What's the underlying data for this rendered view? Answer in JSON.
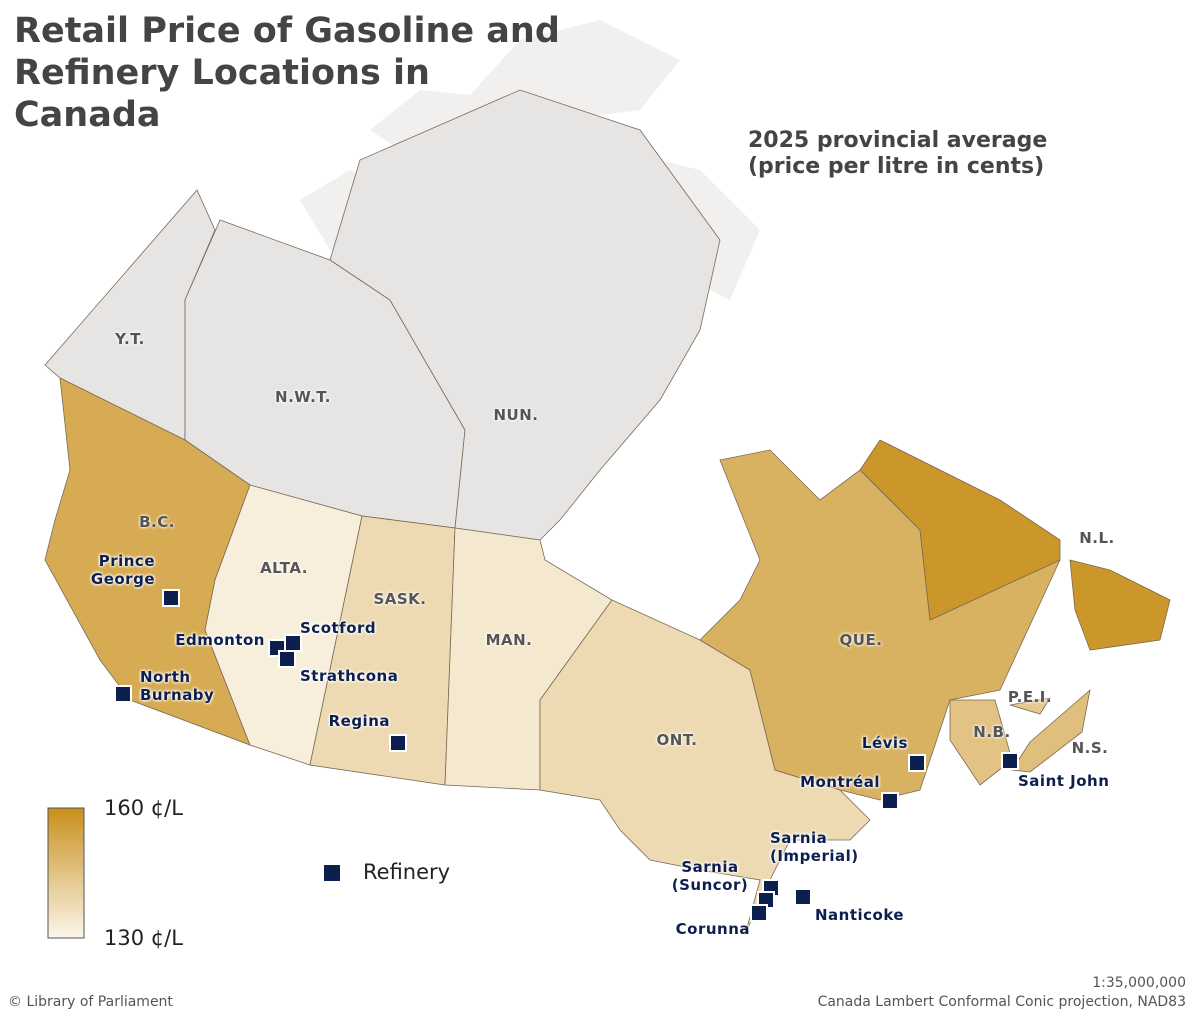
{
  "title": "Retail Price of Gasoline and Refinery Locations in Canada",
  "subtitle": "2025 provincial average (price per litre in cents)",
  "legend": {
    "max": {
      "value": 160,
      "label": "160 ¢/L"
    },
    "min": {
      "value": 130,
      "label": "130 ¢/L"
    },
    "low_color": "#fbf5ea",
    "high_color": "#c8901c",
    "no_data_color": "#e6e5e3",
    "refinery": "Refinery",
    "refinery_color": "#0d1f4f"
  },
  "regions": [
    {
      "label": "Y.T."
    },
    {
      "label": "N.W.T."
    },
    {
      "label": "NUN."
    },
    {
      "label": "B.C.",
      "price": 152
    },
    {
      "label": "ALTA.",
      "price": 132
    },
    {
      "label": "SASK.",
      "price": 138
    },
    {
      "label": "MAN.",
      "price": 134
    },
    {
      "label": "ONT.",
      "price": 138
    },
    {
      "label": "QUE.",
      "price": 150
    },
    {
      "label": "N.L.",
      "price": 158
    },
    {
      "label": "P.E.I.",
      "price": 143
    },
    {
      "label": "N.B.",
      "price": 145
    },
    {
      "label": "N.S.",
      "price": 146
    }
  ],
  "refineries": [
    "Prince George",
    "Edmonton",
    "Scotford",
    "Strathcona",
    "North Burnaby",
    "Regina",
    "Lévis",
    "Montréal",
    "Saint John",
    "Sarnia (Imperial)",
    "Sarnia (Suncor)",
    "Corunna",
    "Nanticoke"
  ],
  "footer": {
    "source": "© Library of Parliament",
    "scale": "1:35,000,000",
    "projection": "Canada Lambert Conformal Conic projection, NAD83"
  }
}
